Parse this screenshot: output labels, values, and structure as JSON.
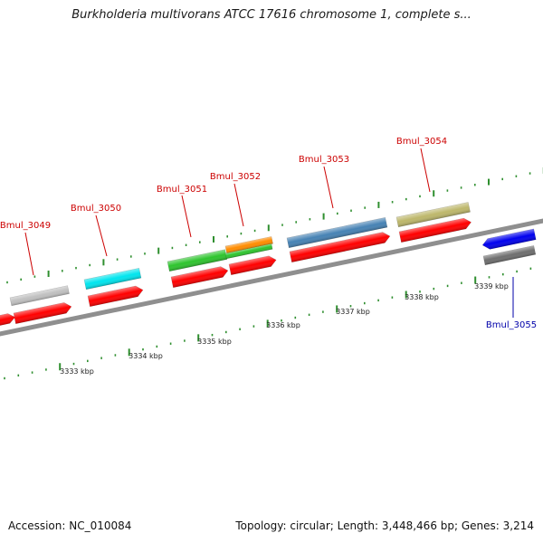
{
  "title": "Burkholderia multivorans ATCC 17616 chromosome 1, complete s...",
  "footer": {
    "accession": "Accession: NC_010084",
    "summary": "Topology: circular; Length: 3,448,466 bp; Genes: 3,214"
  },
  "colors": {
    "backbone": "#8f8f8f",
    "tick": "#2f8f2f",
    "label_top": "#cc0000",
    "label_bottom": "#0000aa",
    "cds": "#ff0000"
  },
  "scale_labels": [
    "3333 kbp",
    "3334 kbp",
    "3335 kbp",
    "3336 kbp",
    "3337 kbp",
    "3338 kbp",
    "3339 kbp"
  ],
  "genes": [
    {
      "name": "Bmul_3049",
      "strand": "+",
      "color": "#c0c0c0"
    },
    {
      "name": "Bmul_3050",
      "strand": "+",
      "color": "#00e5ee"
    },
    {
      "name": "Bmul_3051",
      "strand": "+",
      "color": "#2ec42e"
    },
    {
      "name": "Bmul_3052",
      "strand": "+",
      "color": "#ff8c00"
    },
    {
      "name": "Bmul_3053",
      "strand": "+",
      "color": "#4682b4"
    },
    {
      "name": "Bmul_3054",
      "strand": "+",
      "color": "#bdb76b"
    },
    {
      "name": "Bmul_3055",
      "strand": "-",
      "color": "#0000ee"
    }
  ]
}
